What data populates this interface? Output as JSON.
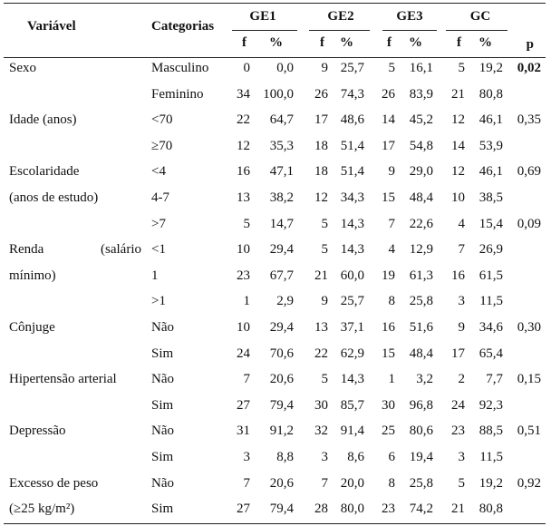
{
  "header": {
    "variable": "Variável",
    "categories": "Categorias",
    "groups": [
      "GE1",
      "GE2",
      "GE3",
      "GC"
    ],
    "sub": [
      "f",
      "%",
      "f",
      "%",
      "f",
      "%",
      "f",
      "%"
    ],
    "p": "p"
  },
  "rows": [
    {
      "label": "Sexo",
      "category": "Masculino",
      "values": [
        "0",
        "0,0",
        "9",
        "25,7",
        "5",
        "16,1",
        "5",
        "19,2"
      ],
      "p": "0,02",
      "p_bold": true
    },
    {
      "label": "",
      "category": "Feminino",
      "values": [
        "34",
        "100,0",
        "26",
        "74,3",
        "26",
        "83,9",
        "21",
        "80,8"
      ],
      "p": ""
    },
    {
      "label": "Idade (anos)",
      "category": "<70",
      "values": [
        "22",
        "64,7",
        "17",
        "48,6",
        "14",
        "45,2",
        "12",
        "46,1"
      ],
      "p": "0,35"
    },
    {
      "label": "",
      "category": "≥70",
      "values": [
        "12",
        "35,3",
        "18",
        "51,4",
        "17",
        "54,8",
        "14",
        "53,9"
      ],
      "p": ""
    },
    {
      "label": "Escolaridade",
      "category": "<4",
      "values": [
        "16",
        "47,1",
        "18",
        "51,4",
        "9",
        "29,0",
        "12",
        "46,1"
      ],
      "p": "0,69"
    },
    {
      "label": "(anos de estudo)",
      "category": "4-7",
      "values": [
        "13",
        "38,2",
        "12",
        "34,3",
        "15",
        "48,4",
        "10",
        "38,5"
      ],
      "p": ""
    },
    {
      "label": "",
      "category": ">7",
      "values": [
        "5",
        "14,7",
        "5",
        "14,3",
        "7",
        "22,6",
        "4",
        "15,4"
      ],
      "p": "0,09"
    },
    {
      "label": "Renda",
      "label_right": "(salário",
      "category": "<1",
      "values": [
        "10",
        "29,4",
        "5",
        "14,3",
        "4",
        "12,9",
        "7",
        "26,9"
      ],
      "p": ""
    },
    {
      "label": "mínimo)",
      "category": "1",
      "values": [
        "23",
        "67,7",
        "21",
        "60,0",
        "19",
        "61,3",
        "16",
        "61,5"
      ],
      "p": ""
    },
    {
      "label": "",
      "category": ">1",
      "values": [
        "1",
        "2,9",
        "9",
        "25,7",
        "8",
        "25,8",
        "3",
        "11,5"
      ],
      "p": ""
    },
    {
      "label": "Cônjuge",
      "category": "Não",
      "values": [
        "10",
        "29,4",
        "13",
        "37,1",
        "16",
        "51,6",
        "9",
        "34,6"
      ],
      "p": "0,30"
    },
    {
      "label": "",
      "category": "Sim",
      "values": [
        "24",
        "70,6",
        "22",
        "62,9",
        "15",
        "48,4",
        "17",
        "65,4"
      ],
      "p": ""
    },
    {
      "label": "Hipertensão arterial",
      "category": "Não",
      "values": [
        "7",
        "20,6",
        "5",
        "14,3",
        "1",
        "3,2",
        "2",
        "7,7"
      ],
      "p": "0,15"
    },
    {
      "label": "",
      "category": "Sim",
      "values": [
        "27",
        "79,4",
        "30",
        "85,7",
        "30",
        "96,8",
        "24",
        "92,3"
      ],
      "p": ""
    },
    {
      "label": "Depressão",
      "category": "Não",
      "values": [
        "31",
        "91,2",
        "32",
        "91,4",
        "25",
        "80,6",
        "23",
        "88,5"
      ],
      "p": "0,51"
    },
    {
      "label": "",
      "category": "Sim",
      "values": [
        "3",
        "8,8",
        "3",
        "8,6",
        "6",
        "19,4",
        "3",
        "11,5"
      ],
      "p": ""
    },
    {
      "label": "Excesso de peso",
      "category": "Não",
      "values": [
        "7",
        "20,6",
        "7",
        "20,0",
        "8",
        "25,8",
        "5",
        "19,2"
      ],
      "p": "0,92"
    },
    {
      "label": "(≥25 kg/m²)",
      "category": "Sim",
      "values": [
        "27",
        "79,4",
        "28",
        "80,0",
        "23",
        "74,2",
        "21",
        "80,8"
      ],
      "p": ""
    }
  ]
}
